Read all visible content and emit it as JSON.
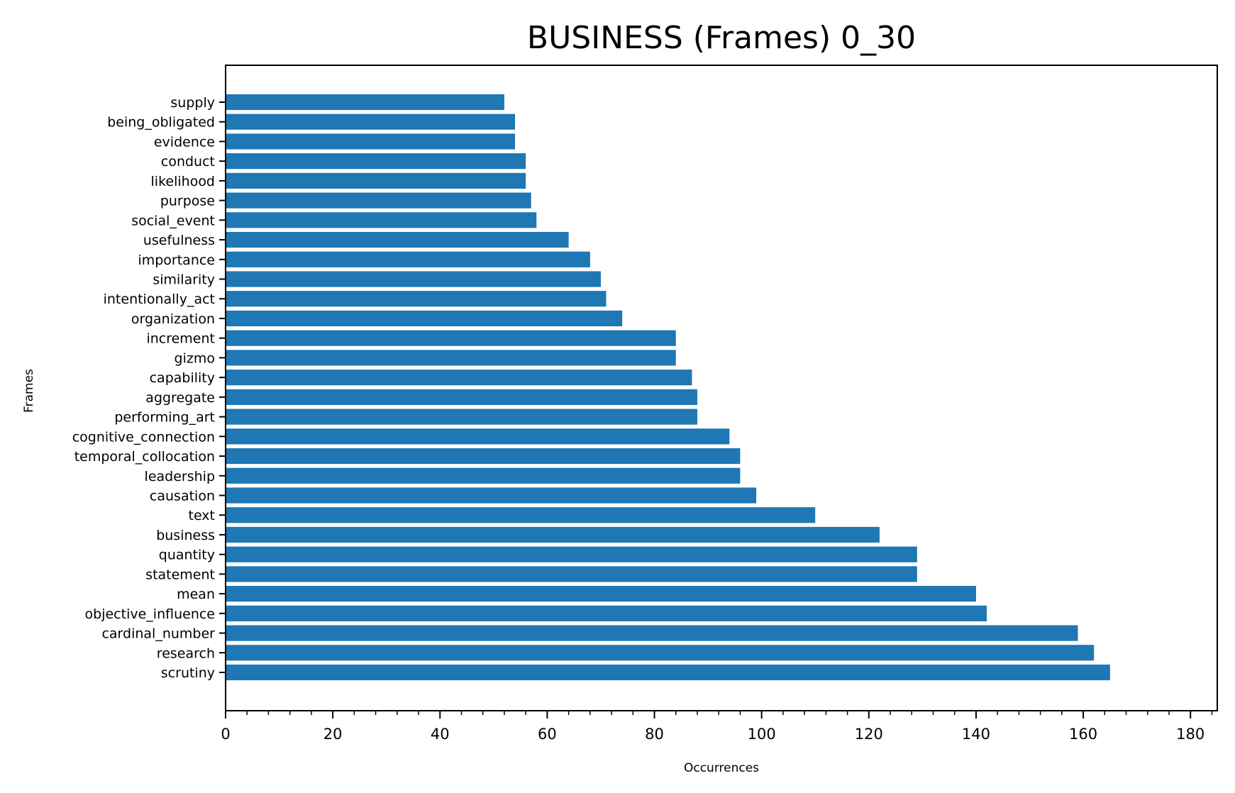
{
  "chart_data": {
    "type": "bar",
    "orientation": "horizontal",
    "title": "BUSINESS (Frames) 0_30",
    "xlabel": "Occurrences",
    "ylabel": "Frames",
    "xlim": [
      0,
      185
    ],
    "xticks": [
      0,
      20,
      40,
      60,
      80,
      100,
      120,
      140,
      160,
      180
    ],
    "minor_tick_step": 4,
    "grid": false,
    "bar_color": "#1f77b4",
    "categories": [
      "supply",
      "being_obligated",
      "evidence",
      "conduct",
      "likelihood",
      "purpose",
      "social_event",
      "usefulness",
      "importance",
      "similarity",
      "intentionally_act",
      "organization",
      "increment",
      "gizmo",
      "capability",
      "aggregate",
      "performing_art",
      "cognitive_connection",
      "temporal_collocation",
      "leadership",
      "causation",
      "text",
      "business",
      "quantity",
      "statement",
      "mean",
      "objective_influence",
      "cardinal_number",
      "research",
      "scrutiny"
    ],
    "values": [
      52,
      54,
      54,
      56,
      56,
      57,
      58,
      64,
      68,
      70,
      71,
      74,
      84,
      84,
      87,
      88,
      88,
      94,
      96,
      96,
      99,
      110,
      122,
      129,
      129,
      140,
      142,
      159,
      162,
      165
    ]
  }
}
